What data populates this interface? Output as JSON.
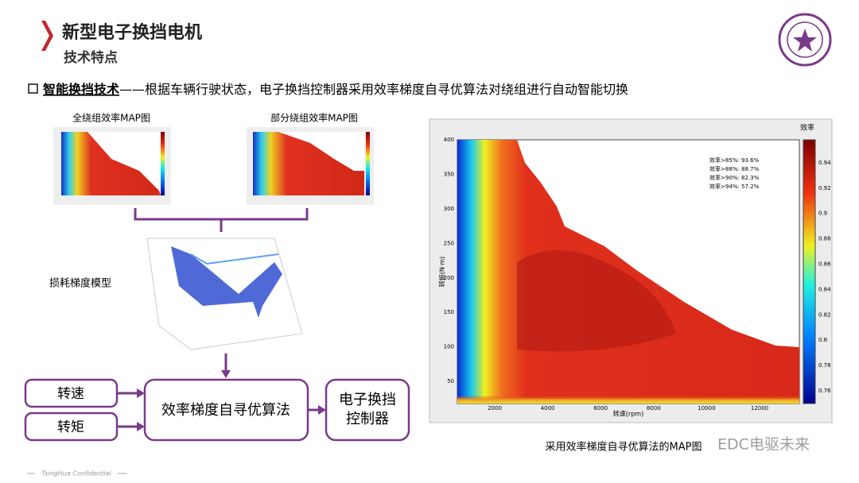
{
  "header": {
    "title": "新型电子换挡电机",
    "subtitle": "技术特点"
  },
  "bullet": {
    "term": "智能换挡技术",
    "text": "——根据车辆行驶状态，电子换挡控制器采用效率梯度自寻优算法对绕组进行自动智能切换"
  },
  "left": {
    "map1_caption": "全绕组效率MAP图",
    "map2_caption": "部分绕组效率MAP图",
    "model_caption": "损耗梯度模型",
    "inputs": [
      "转速",
      "转矩"
    ],
    "algorithm": "效率梯度自寻优算法",
    "controller": [
      "电子换挡",
      "控制器"
    ]
  },
  "map": {
    "colorbar_title": "效率",
    "x_label": "转速(rpm)",
    "y_label": "转矩(N·m)",
    "xticks": [
      "2000",
      "4000",
      "6000",
      "8000",
      "10000",
      "12000"
    ],
    "yticks": [
      "50",
      "100",
      "150",
      "200",
      "250",
      "300",
      "350",
      "400"
    ],
    "cticks": [
      "0.76",
      "0.78",
      "0.8",
      "0.82",
      "0.84",
      "0.86",
      "0.88",
      "0.9",
      "0.92",
      "0.94"
    ],
    "legend": [
      "效率>85%: 93.6%",
      "效率>88%: 88.7%",
      "效率>90%: 82.3%",
      "效率>94%: 57.2%"
    ],
    "caption": "采用效率梯度自寻优算法的MAP图"
  },
  "watermark": "EDC电驱未来",
  "footer": "TsingHua Confidential"
}
